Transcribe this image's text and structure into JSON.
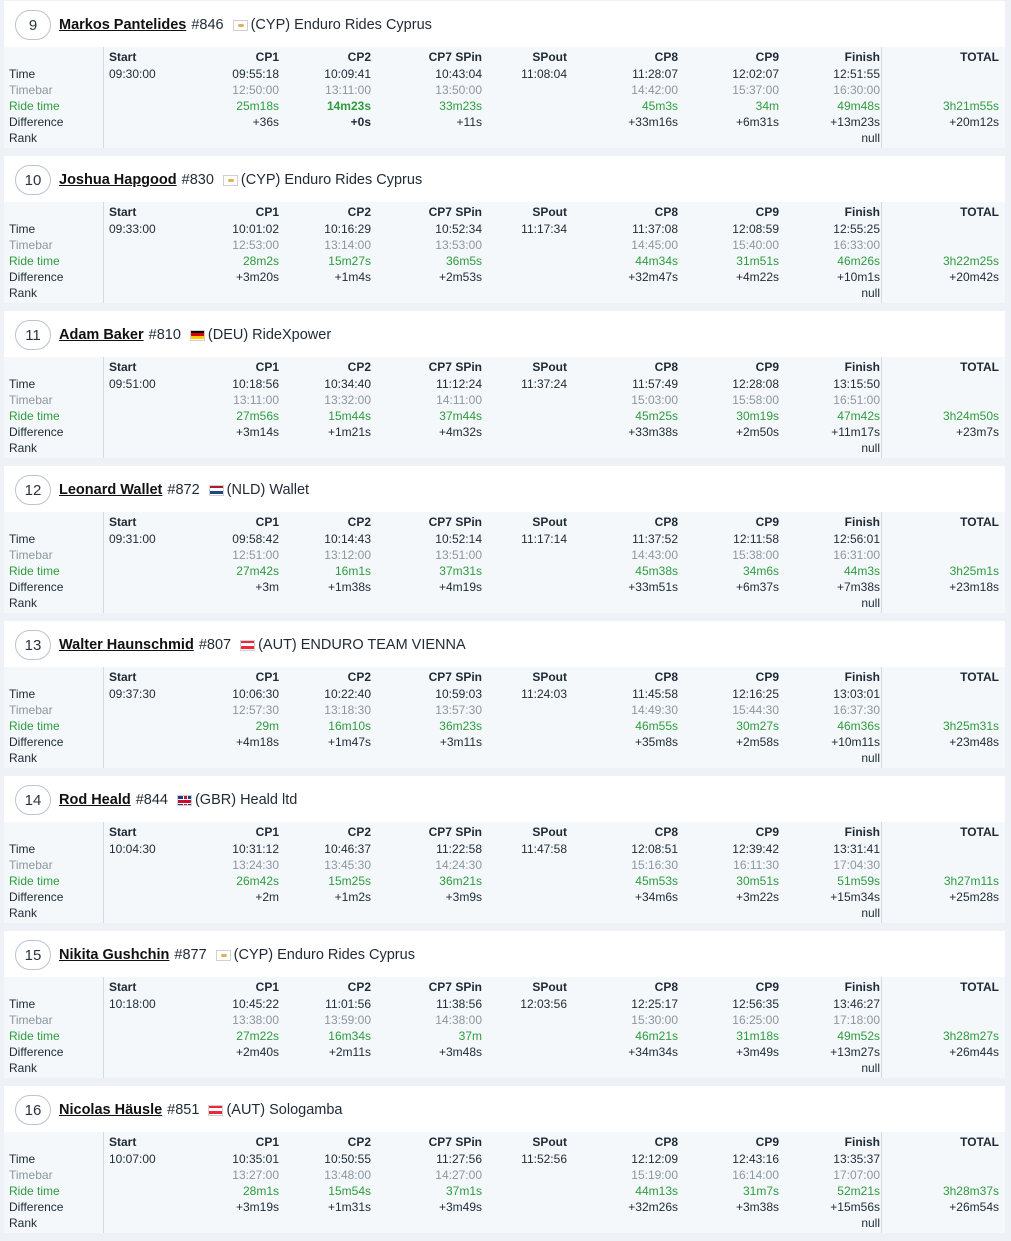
{
  "columns": [
    "Start",
    "CP1",
    "CP2",
    "CP7 SPin",
    "SPout",
    "CP8",
    "CP9",
    "Finish",
    "TOTAL"
  ],
  "row_labels": [
    "Time",
    "Timebar",
    "Ride time",
    "Difference",
    "Rank"
  ],
  "colors": {
    "ride_time": "#2e9b3e",
    "timebar": "#8c969f",
    "text": "#1f2a35"
  },
  "riders": [
    {
      "position": "9",
      "name": "Markos Pantelides",
      "number": "#846",
      "flag_icon": "flag-cyp",
      "country": "(CYP)",
      "team": "Enduro Rides Cyprus",
      "start": "09:30:00",
      "time": [
        "09:55:18",
        "10:09:41",
        "10:43:04",
        "11:08:04",
        "11:28:07",
        "12:02:07",
        "12:51:55"
      ],
      "timebar": [
        "12:50:00",
        "13:11:00",
        "13:50:00",
        "",
        "14:42:00",
        "15:37:00",
        "16:30:00"
      ],
      "ride_time": [
        "25m18s",
        "14m23s",
        "33m23s",
        "",
        "45m3s",
        "34m",
        "49m48s"
      ],
      "difference": [
        "+36s",
        "+0s",
        "+11s",
        "",
        "+33m16s",
        "+6m31s",
        "+13m23s"
      ],
      "rank_finish": "null",
      "total_ride": "3h21m55s",
      "total_diff": "+20m12s"
    },
    {
      "position": "10",
      "name": "Joshua Hapgood",
      "number": "#830",
      "flag_icon": "flag-cyp",
      "country": "(CYP)",
      "team": "Enduro Rides Cyprus",
      "start": "09:33:00",
      "time": [
        "10:01:02",
        "10:16:29",
        "10:52:34",
        "11:17:34",
        "11:37:08",
        "12:08:59",
        "12:55:25"
      ],
      "timebar": [
        "12:53:00",
        "13:14:00",
        "13:53:00",
        "",
        "14:45:00",
        "15:40:00",
        "16:33:00"
      ],
      "ride_time": [
        "28m2s",
        "15m27s",
        "36m5s",
        "",
        "44m34s",
        "31m51s",
        "46m26s"
      ],
      "difference": [
        "+3m20s",
        "+1m4s",
        "+2m53s",
        "",
        "+32m47s",
        "+4m22s",
        "+10m1s"
      ],
      "rank_finish": "null",
      "total_ride": "3h22m25s",
      "total_diff": "+20m42s"
    },
    {
      "position": "11",
      "name": "Adam Baker",
      "number": "#810",
      "flag_icon": "flag-deu",
      "country": "(DEU)",
      "team": "RideXpower",
      "start": "09:51:00",
      "time": [
        "10:18:56",
        "10:34:40",
        "11:12:24",
        "11:37:24",
        "11:57:49",
        "12:28:08",
        "13:15:50"
      ],
      "timebar": [
        "13:11:00",
        "13:32:00",
        "14:11:00",
        "",
        "15:03:00",
        "15:58:00",
        "16:51:00"
      ],
      "ride_time": [
        "27m56s",
        "15m44s",
        "37m44s",
        "",
        "45m25s",
        "30m19s",
        "47m42s"
      ],
      "difference": [
        "+3m14s",
        "+1m21s",
        "+4m32s",
        "",
        "+33m38s",
        "+2m50s",
        "+11m17s"
      ],
      "rank_finish": "null",
      "total_ride": "3h24m50s",
      "total_diff": "+23m7s"
    },
    {
      "position": "12",
      "name": "Leonard Wallet",
      "number": "#872",
      "flag_icon": "flag-nld",
      "country": "(NLD)",
      "team": "Wallet",
      "start": "09:31:00",
      "time": [
        "09:58:42",
        "10:14:43",
        "10:52:14",
        "11:17:14",
        "11:37:52",
        "12:11:58",
        "12:56:01"
      ],
      "timebar": [
        "12:51:00",
        "13:12:00",
        "13:51:00",
        "",
        "14:43:00",
        "15:38:00",
        "16:31:00"
      ],
      "ride_time": [
        "27m42s",
        "16m1s",
        "37m31s",
        "",
        "45m38s",
        "34m6s",
        "44m3s"
      ],
      "difference": [
        "+3m",
        "+1m38s",
        "+4m19s",
        "",
        "+33m51s",
        "+6m37s",
        "+7m38s"
      ],
      "rank_finish": "null",
      "total_ride": "3h25m1s",
      "total_diff": "+23m18s"
    },
    {
      "position": "13",
      "name": "Walter Haunschmid",
      "number": "#807",
      "flag_icon": "flag-aut",
      "country": "(AUT)",
      "team": "ENDURO TEAM VIENNA",
      "start": "09:37:30",
      "time": [
        "10:06:30",
        "10:22:40",
        "10:59:03",
        "11:24:03",
        "11:45:58",
        "12:16:25",
        "13:03:01"
      ],
      "timebar": [
        "12:57:30",
        "13:18:30",
        "13:57:30",
        "",
        "14:49:30",
        "15:44:30",
        "16:37:30"
      ],
      "ride_time": [
        "29m",
        "16m10s",
        "36m23s",
        "",
        "46m55s",
        "30m27s",
        "46m36s"
      ],
      "difference": [
        "+4m18s",
        "+1m47s",
        "+3m11s",
        "",
        "+35m8s",
        "+2m58s",
        "+10m11s"
      ],
      "rank_finish": "null",
      "total_ride": "3h25m31s",
      "total_diff": "+23m48s"
    },
    {
      "position": "14",
      "name": "Rod Heald",
      "number": "#844",
      "flag_icon": "flag-gbr",
      "country": "(GBR)",
      "team": "Heald ltd",
      "start": "10:04:30",
      "time": [
        "10:31:12",
        "10:46:37",
        "11:22:58",
        "11:47:58",
        "12:08:51",
        "12:39:42",
        "13:31:41"
      ],
      "timebar": [
        "13:24:30",
        "13:45:30",
        "14:24:30",
        "",
        "15:16:30",
        "16:11:30",
        "17:04:30"
      ],
      "ride_time": [
        "26m42s",
        "15m25s",
        "36m21s",
        "",
        "45m53s",
        "30m51s",
        "51m59s"
      ],
      "difference": [
        "+2m",
        "+1m2s",
        "+3m9s",
        "",
        "+34m6s",
        "+3m22s",
        "+15m34s"
      ],
      "rank_finish": "null",
      "total_ride": "3h27m11s",
      "total_diff": "+25m28s"
    },
    {
      "position": "15",
      "name": "Nikita Gushchin",
      "number": "#877",
      "flag_icon": "flag-cyp",
      "country": "(CYP)",
      "team": "Enduro Rides Cyprus",
      "start": "10:18:00",
      "time": [
        "10:45:22",
        "11:01:56",
        "11:38:56",
        "12:03:56",
        "12:25:17",
        "12:56:35",
        "13:46:27"
      ],
      "timebar": [
        "13:38:00",
        "13:59:00",
        "14:38:00",
        "",
        "15:30:00",
        "16:25:00",
        "17:18:00"
      ],
      "ride_time": [
        "27m22s",
        "16m34s",
        "37m",
        "",
        "46m21s",
        "31m18s",
        "49m52s"
      ],
      "difference": [
        "+2m40s",
        "+2m11s",
        "+3m48s",
        "",
        "+34m34s",
        "+3m49s",
        "+13m27s"
      ],
      "rank_finish": "null",
      "total_ride": "3h28m27s",
      "total_diff": "+26m44s"
    },
    {
      "position": "16",
      "name": "Nicolas Häusle",
      "number": "#851",
      "flag_icon": "flag-aut",
      "country": "(AUT)",
      "team": "Sologamba",
      "start": "10:07:00",
      "time": [
        "10:35:01",
        "10:50:55",
        "11:27:56",
        "11:52:56",
        "12:12:09",
        "12:43:16",
        "13:35:37"
      ],
      "timebar": [
        "13:27:00",
        "13:48:00",
        "14:27:00",
        "",
        "15:19:00",
        "16:14:00",
        "17:07:00"
      ],
      "ride_time": [
        "28m1s",
        "15m54s",
        "37m1s",
        "",
        "44m13s",
        "31m7s",
        "52m21s"
      ],
      "difference": [
        "+3m19s",
        "+1m31s",
        "+3m49s",
        "",
        "+32m26s",
        "+3m38s",
        "+15m56s"
      ],
      "rank_finish": "null",
      "total_ride": "3h28m37s",
      "total_diff": "+26m54s"
    }
  ]
}
